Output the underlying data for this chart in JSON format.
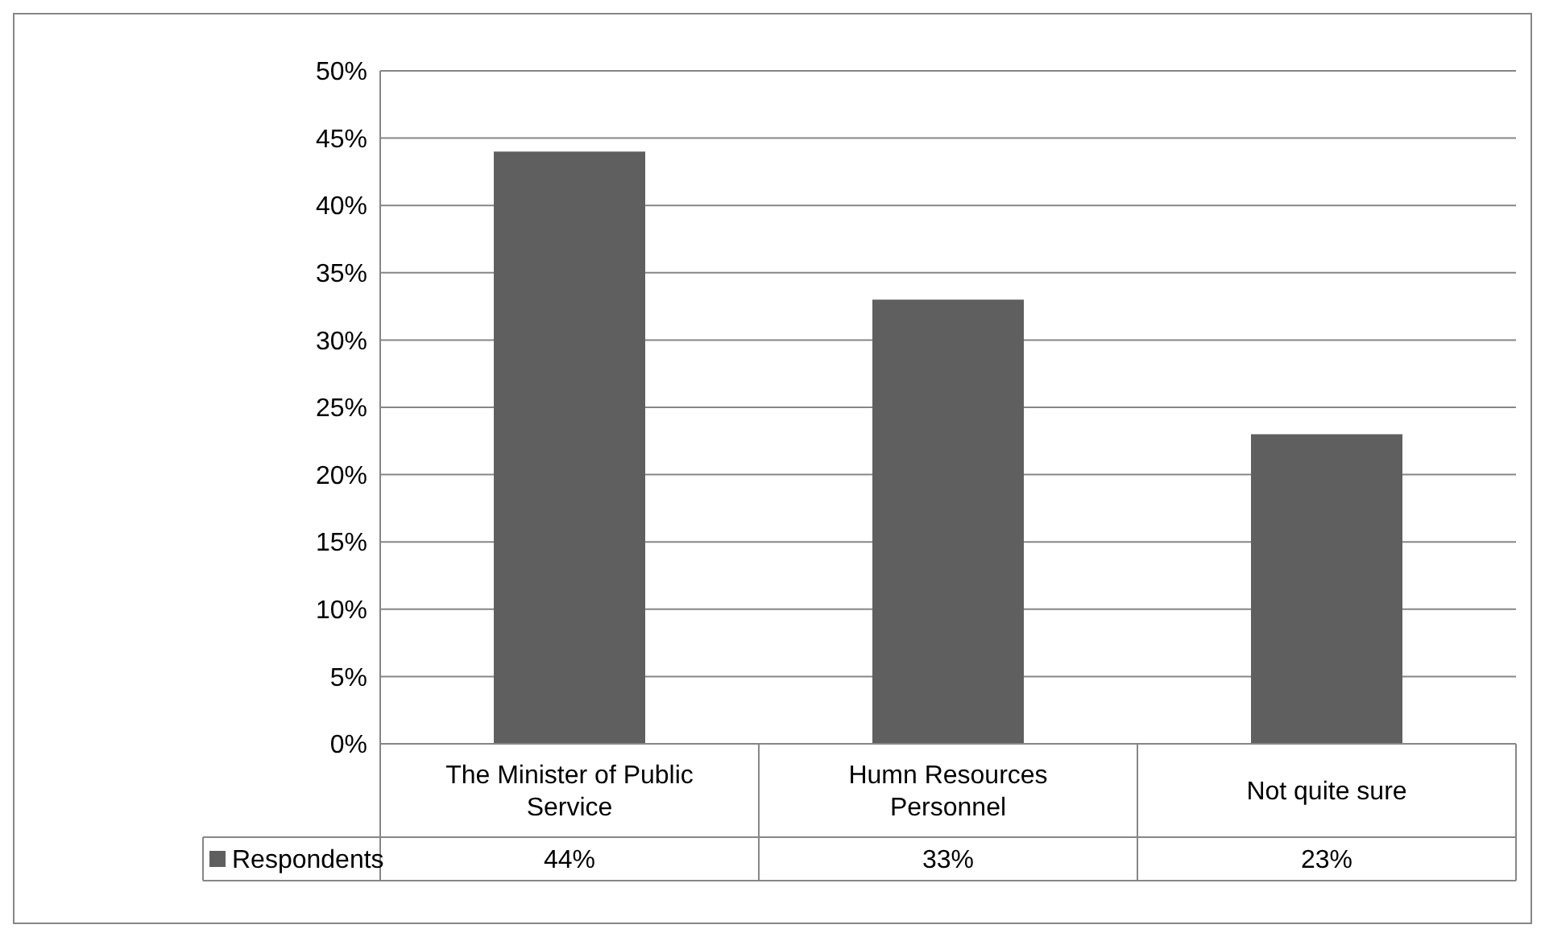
{
  "chart_data": {
    "type": "bar",
    "categories": [
      "The Minister of Public Service",
      "Humn Resources Personnel",
      "Not quite sure"
    ],
    "series": [
      {
        "name": "Respondents",
        "color": "#5f5f5f",
        "values": [
          44,
          33,
          23
        ],
        "value_labels": [
          "44%",
          "33%",
          "23%"
        ]
      }
    ],
    "ylim": [
      0,
      50
    ],
    "yticks": [
      {
        "value": 0,
        "label": "0%"
      },
      {
        "value": 5,
        "label": "5%"
      },
      {
        "value": 10,
        "label": "10%"
      },
      {
        "value": 15,
        "label": "15%"
      },
      {
        "value": 20,
        "label": "20%"
      },
      {
        "value": 25,
        "label": "25%"
      },
      {
        "value": 30,
        "label": "30%"
      },
      {
        "value": 35,
        "label": "35%"
      },
      {
        "value": 40,
        "label": "40%"
      },
      {
        "value": 45,
        "label": "45%"
      },
      {
        "value": 50,
        "label": "50%"
      }
    ],
    "grid": "y",
    "legend": "bottom"
  }
}
